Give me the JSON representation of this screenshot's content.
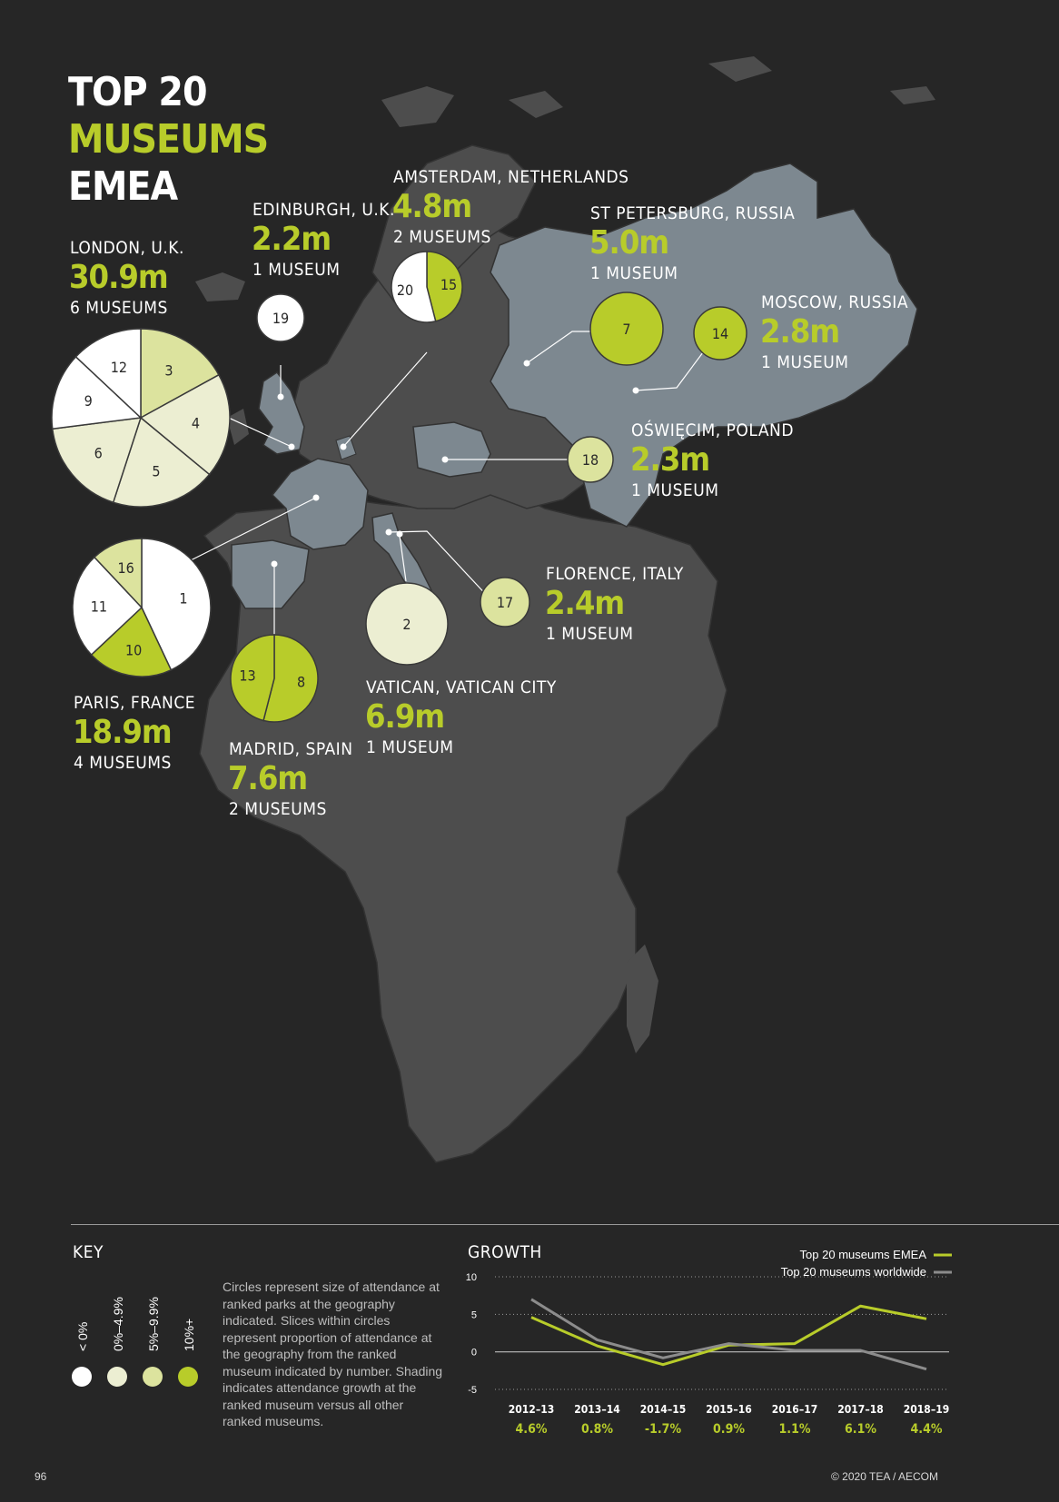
{
  "title": {
    "line1": "TOP 20",
    "line2": "MUSEUMS",
    "line3": "EMEA"
  },
  "colors": {
    "bg": "#262626",
    "land": "#4d4d4d",
    "highlight": "#7d8890",
    "lime": "#b8cc2a",
    "neg": "#ffffff",
    "low": "#eceed2",
    "mid": "#dce39e",
    "high": "#b8cc2a",
    "line_emea": "#b8cc2a",
    "line_world": "#8c8c8c"
  },
  "cities": [
    {
      "id": "london",
      "name": "LONDON, U.K.",
      "value": "30.9m",
      "museums": "6 MUSEUMS"
    },
    {
      "id": "edinburgh",
      "name": "EDINBURGH, U.K.",
      "value": "2.2m",
      "museums": "1 MUSEUM"
    },
    {
      "id": "amsterdam",
      "name": "AMSTERDAM, NETHERLANDS",
      "value": "4.8m",
      "museums": "2 MUSEUMS"
    },
    {
      "id": "stpete",
      "name": "ST PETERSBURG, RUSSIA",
      "value": "5.0m",
      "museums": "1 MUSEUM"
    },
    {
      "id": "moscow",
      "name": "MOSCOW, RUSSIA",
      "value": "2.8m",
      "museums": "1 MUSEUM"
    },
    {
      "id": "oswiecim",
      "name": "OŚWIĘCIM, POLAND",
      "value": "2.3m",
      "museums": "1 MUSEUM"
    },
    {
      "id": "florence",
      "name": "FLORENCE, ITALY",
      "value": "2.4m",
      "museums": "1 MUSEUM"
    },
    {
      "id": "vatican",
      "name": "VATICAN, VATICAN CITY",
      "value": "6.9m",
      "museums": "1 MUSEUM"
    },
    {
      "id": "paris",
      "name": "PARIS, FRANCE",
      "value": "18.9m",
      "museums": "4 MUSEUMS"
    },
    {
      "id": "madrid",
      "name": "MADRID, SPAIN",
      "value": "7.6m",
      "museums": "2 MUSEUMS"
    }
  ],
  "pies": [
    {
      "id": "london",
      "slices": [
        {
          "rank": "3",
          "share": 0.17,
          "growth": "mid"
        },
        {
          "rank": "4",
          "share": 0.19,
          "growth": "low"
        },
        {
          "rank": "5",
          "share": 0.19,
          "growth": "low"
        },
        {
          "rank": "6",
          "share": 0.18,
          "growth": "low"
        },
        {
          "rank": "9",
          "share": 0.14,
          "growth": "neg"
        },
        {
          "rank": "12",
          "share": 0.13,
          "growth": "neg"
        }
      ]
    },
    {
      "id": "paris",
      "slices": [
        {
          "rank": "1",
          "share": 0.43,
          "growth": "neg"
        },
        {
          "rank": "10",
          "share": 0.2,
          "growth": "high"
        },
        {
          "rank": "11",
          "share": 0.25,
          "growth": "neg"
        },
        {
          "rank": "16",
          "share": 0.12,
          "growth": "mid"
        }
      ]
    },
    {
      "id": "amsterdam",
      "slices": [
        {
          "rank": "15",
          "share": 0.46,
          "growth": "high"
        },
        {
          "rank": "20",
          "share": 0.54,
          "growth": "neg"
        }
      ]
    },
    {
      "id": "madrid",
      "slices": [
        {
          "rank": "8",
          "share": 0.54,
          "growth": "high"
        },
        {
          "rank": "13",
          "share": 0.46,
          "growth": "high"
        }
      ]
    },
    {
      "id": "edinburgh",
      "slices": [
        {
          "rank": "19",
          "share": 1,
          "growth": "neg"
        }
      ]
    },
    {
      "id": "stpete",
      "slices": [
        {
          "rank": "7",
          "share": 1,
          "growth": "high"
        }
      ]
    },
    {
      "id": "moscow",
      "slices": [
        {
          "rank": "14",
          "share": 1,
          "growth": "high"
        }
      ]
    },
    {
      "id": "oswiecim",
      "slices": [
        {
          "rank": "18",
          "share": 1,
          "growth": "mid"
        }
      ]
    },
    {
      "id": "florence",
      "slices": [
        {
          "rank": "17",
          "share": 1,
          "growth": "mid"
        }
      ]
    },
    {
      "id": "vatican",
      "slices": [
        {
          "rank": "2",
          "share": 1,
          "growth": "low"
        }
      ]
    }
  ],
  "key": {
    "title": "KEY",
    "items": [
      {
        "label": "< 0%",
        "growth": "neg"
      },
      {
        "label": "0%–4.9%",
        "growth": "low"
      },
      {
        "label": "5%–9.9%",
        "growth": "mid"
      },
      {
        "label": "10%+",
        "growth": "high"
      }
    ],
    "description": "Circles represent size of attendance at ranked parks at the geography indicated. Slices within circles represent proportion of attendance at the geography from the ranked museum indicated by number. Shading indicates attendance growth at the ranked museum versus all other ranked museums."
  },
  "chart_data": {
    "type": "line",
    "title": "GROWTH",
    "categories": [
      "2012–13",
      "2013–14",
      "2014–15",
      "2015–16",
      "2016–17",
      "2017–18",
      "2018–19"
    ],
    "category_values": [
      "4.6%",
      "0.8%",
      "-1.7%",
      "0.9%",
      "1.1%",
      "6.1%",
      "4.4%"
    ],
    "series": [
      {
        "name": "Top 20 museums EMEA",
        "values": [
          4.6,
          0.8,
          -1.7,
          0.9,
          1.1,
          6.1,
          4.4
        ],
        "color": "#b8cc2a"
      },
      {
        "name": "Top 20 museums worldwide",
        "values": [
          7.0,
          1.6,
          -0.8,
          1.1,
          0.2,
          0.2,
          -2.3
        ],
        "color": "#8c8c8c"
      }
    ],
    "yticks": [
      "10",
      "5",
      "0",
      "-5"
    ],
    "ylim": [
      -5,
      10
    ],
    "grid": true,
    "legend": "top-right"
  },
  "footer": {
    "page": "96",
    "copyright": "© 2020 TEA / AECOM"
  }
}
